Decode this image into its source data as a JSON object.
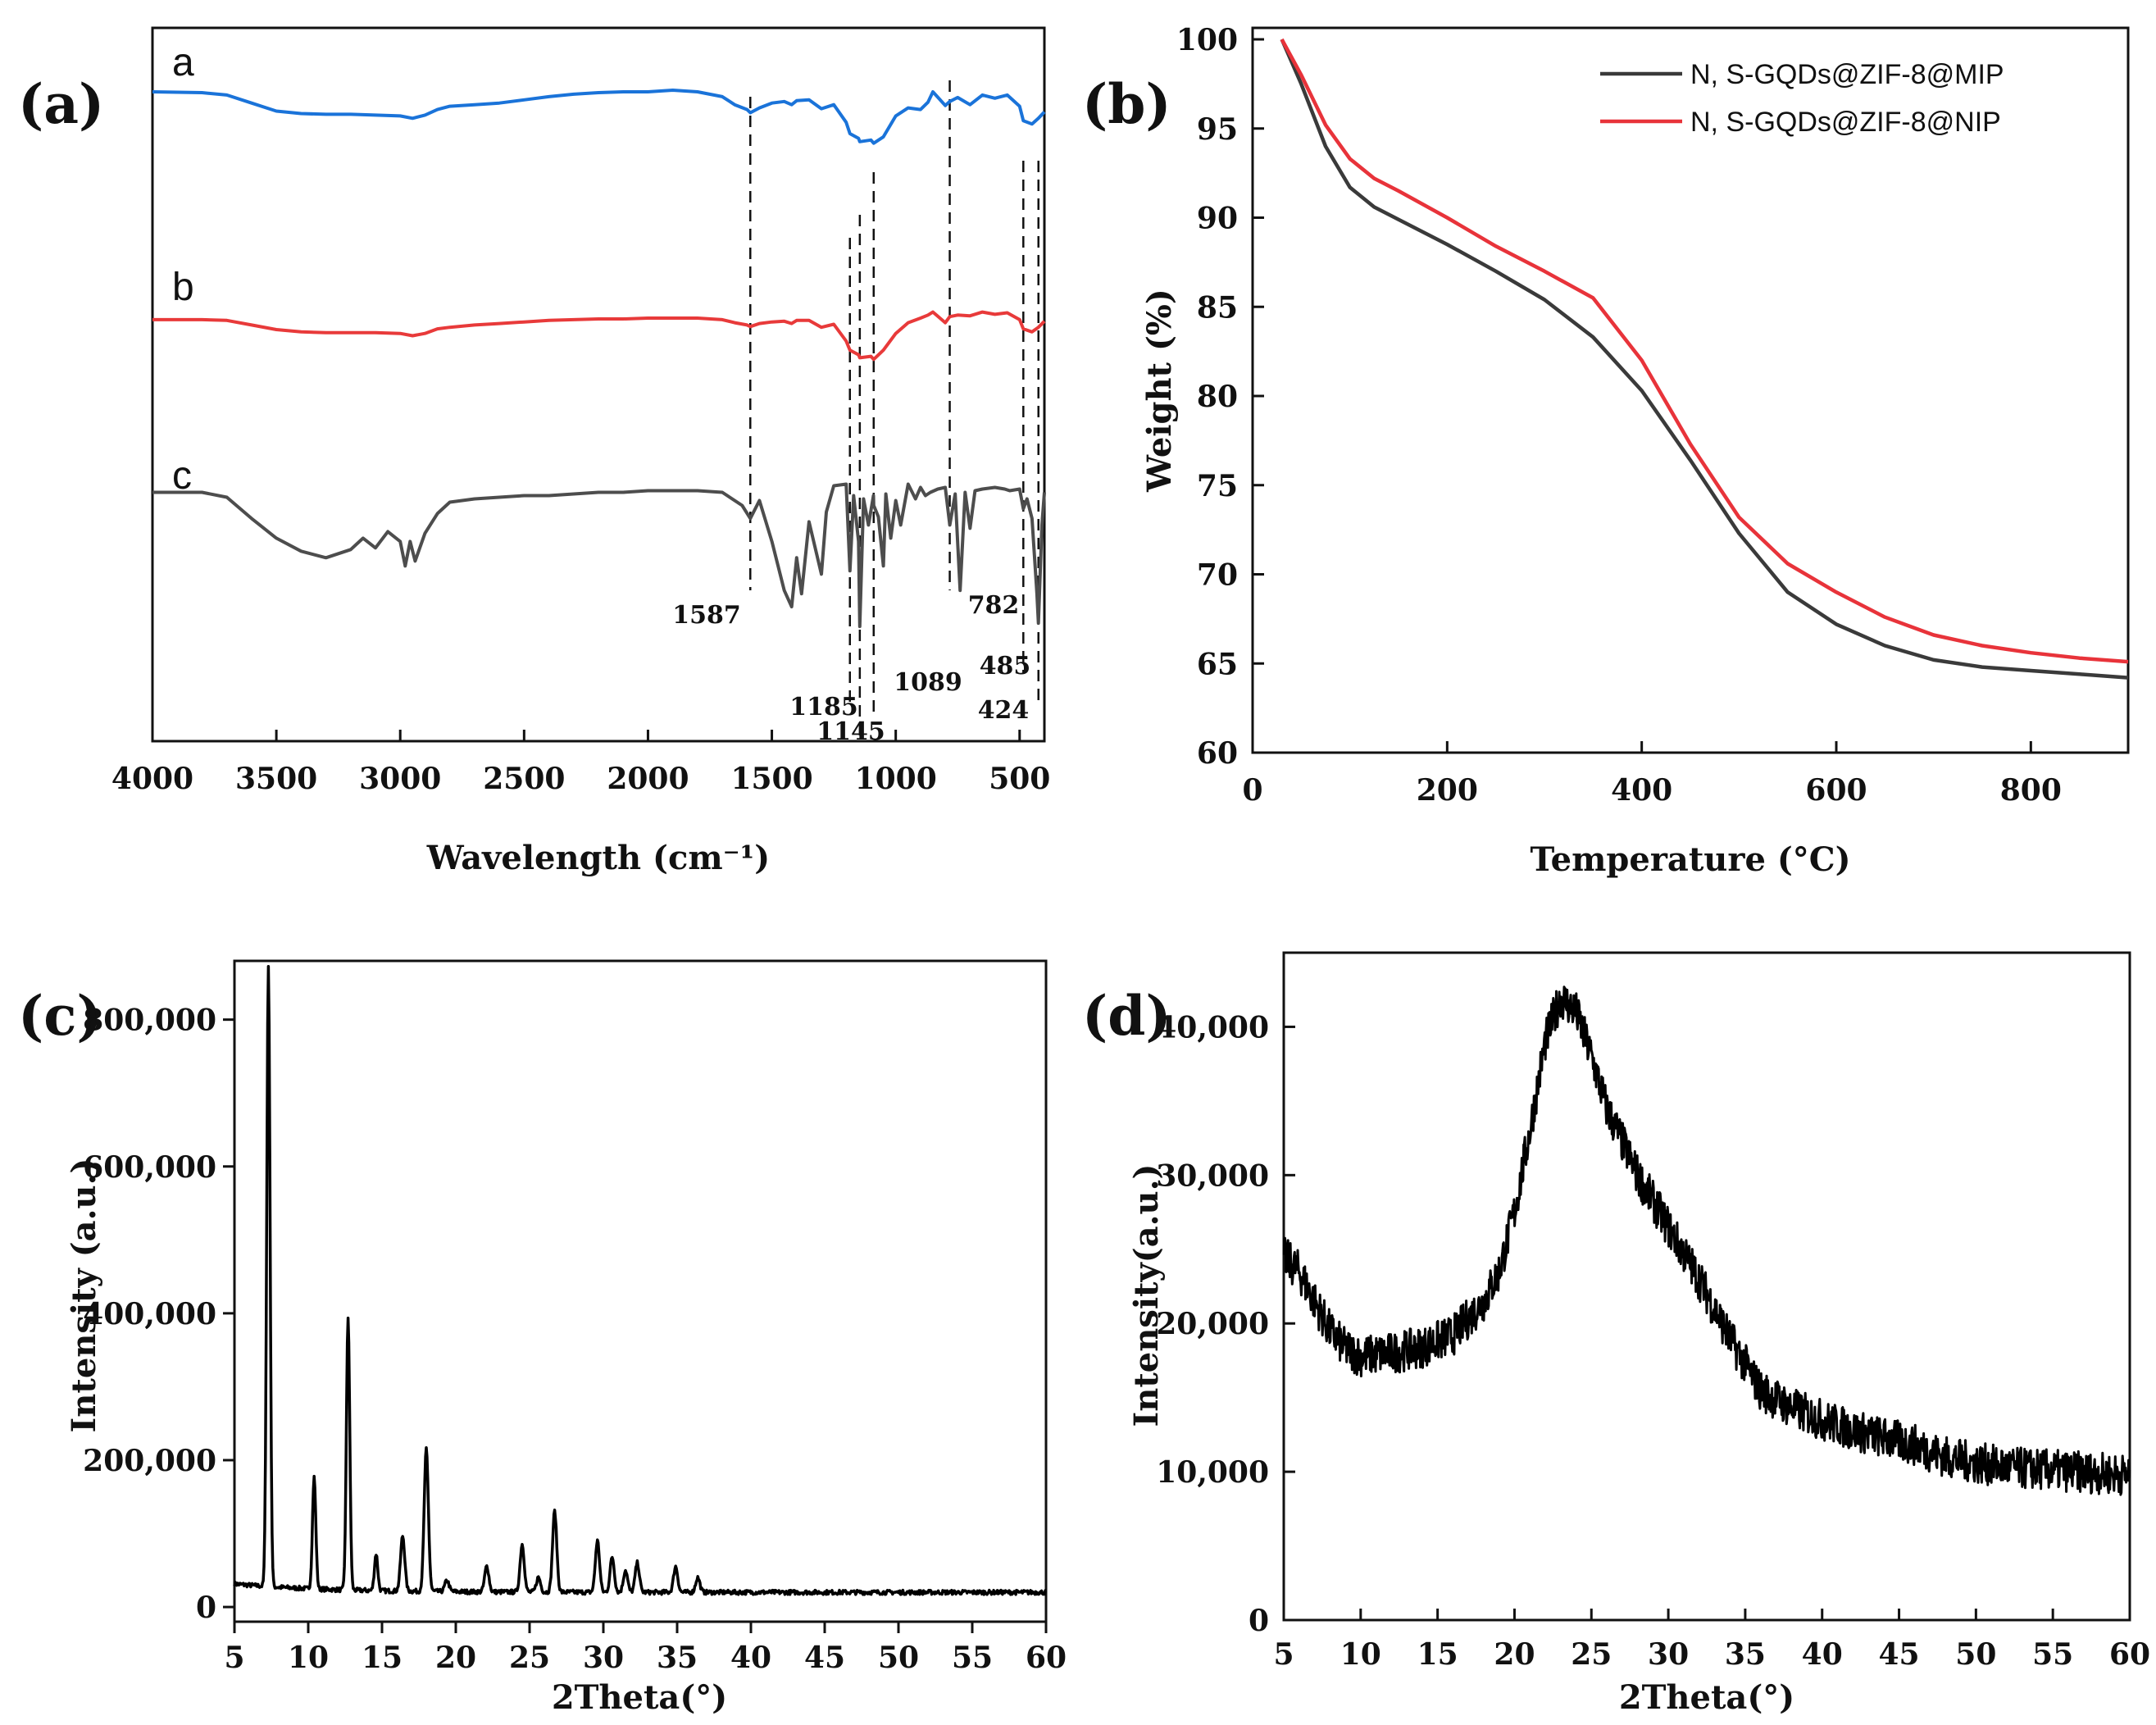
{
  "chart_data": [
    {
      "panel": "(a)",
      "type": "line",
      "xlabel": "Wavelength (cm⁻¹)",
      "ylabel": "",
      "xlim": [
        4000,
        400
      ],
      "xticks": [
        "4000",
        "3500",
        "3000",
        "2500",
        "2000",
        "1500",
        "1000",
        "500"
      ],
      "curve_labels": [
        "a",
        "b",
        "c"
      ],
      "series": [
        {
          "label": "a",
          "color": "#1a73d9",
          "x": [
            4000,
            3800,
            3700,
            3600,
            3500,
            3400,
            3300,
            3200,
            3100,
            3000,
            2950,
            2900,
            2850,
            2800,
            2700,
            2600,
            2500,
            2400,
            2300,
            2200,
            2100,
            2000,
            1900,
            1800,
            1700,
            1650,
            1600,
            1587,
            1550,
            1500,
            1450,
            1420,
            1400,
            1350,
            1300,
            1250,
            1200,
            1185,
            1150,
            1145,
            1100,
            1089,
            1050,
            1000,
            950,
            900,
            870,
            850,
            800,
            782,
            750,
            700,
            650,
            600,
            550,
            500,
            485,
            450,
            424,
            400
          ],
          "y": [
            1.0,
            0.99,
            0.96,
            0.86,
            0.76,
            0.73,
            0.72,
            0.72,
            0.71,
            0.7,
            0.67,
            0.71,
            0.78,
            0.82,
            0.84,
            0.86,
            0.9,
            0.94,
            0.97,
            0.99,
            1.0,
            1.0,
            1.02,
            1.0,
            0.94,
            0.84,
            0.78,
            0.74,
            0.8,
            0.86,
            0.88,
            0.84,
            0.89,
            0.9,
            0.79,
            0.84,
            0.62,
            0.48,
            0.42,
            0.38,
            0.4,
            0.36,
            0.44,
            0.7,
            0.8,
            0.78,
            0.87,
            1.0,
            0.83,
            0.88,
            0.93,
            0.84,
            0.96,
            0.92,
            0.96,
            0.82,
            0.64,
            0.6,
            0.67,
            0.75
          ]
        },
        {
          "label": "b",
          "color": "#e83a3a",
          "x": [
            4000,
            3800,
            3700,
            3600,
            3500,
            3400,
            3300,
            3200,
            3100,
            3000,
            2950,
            2900,
            2850,
            2800,
            2700,
            2600,
            2500,
            2400,
            2300,
            2200,
            2100,
            2000,
            1900,
            1800,
            1700,
            1650,
            1600,
            1587,
            1550,
            1500,
            1450,
            1420,
            1400,
            1350,
            1300,
            1250,
            1200,
            1185,
            1150,
            1145,
            1100,
            1089,
            1050,
            1000,
            950,
            900,
            870,
            850,
            800,
            782,
            750,
            700,
            650,
            600,
            550,
            500,
            485,
            450,
            424,
            400
          ],
          "y": [
            1.0,
            1.0,
            0.99,
            0.93,
            0.87,
            0.84,
            0.83,
            0.83,
            0.83,
            0.82,
            0.79,
            0.82,
            0.88,
            0.9,
            0.93,
            0.95,
            0.97,
            0.99,
            1.0,
            1.01,
            1.01,
            1.02,
            1.02,
            1.02,
            1.0,
            0.96,
            0.93,
            0.91,
            0.95,
            0.97,
            0.98,
            0.95,
            0.99,
            0.99,
            0.9,
            0.94,
            0.72,
            0.6,
            0.54,
            0.5,
            0.52,
            0.48,
            0.6,
            0.82,
            0.96,
            1.02,
            1.06,
            1.1,
            0.96,
            1.04,
            1.06,
            1.05,
            1.1,
            1.07,
            1.09,
            1.0,
            0.88,
            0.84,
            0.9,
            0.98
          ]
        },
        {
          "label": "c",
          "color": "#4d4d4d",
          "x": [
            4000,
            3800,
            3700,
            3600,
            3500,
            3400,
            3300,
            3200,
            3150,
            3100,
            3050,
            3000,
            2980,
            2960,
            2940,
            2900,
            2850,
            2800,
            2700,
            2600,
            2500,
            2400,
            2300,
            2200,
            2100,
            2000,
            1900,
            1800,
            1700,
            1620,
            1587,
            1550,
            1500,
            1450,
            1420,
            1400,
            1380,
            1350,
            1300,
            1280,
            1250,
            1200,
            1185,
            1170,
            1150,
            1145,
            1130,
            1110,
            1090,
            1089,
            1070,
            1050,
            1040,
            1020,
            1000,
            980,
            950,
            920,
            900,
            880,
            860,
            830,
            800,
            782,
            760,
            740,
            720,
            700,
            680,
            650,
            600,
            560,
            540,
            500,
            485,
            470,
            450,
            430,
            424,
            410,
            400
          ],
          "y": [
            1.0,
            1.0,
            0.97,
            0.84,
            0.72,
            0.64,
            0.6,
            0.65,
            0.72,
            0.66,
            0.76,
            0.7,
            0.55,
            0.7,
            0.58,
            0.75,
            0.87,
            0.94,
            0.96,
            0.97,
            0.98,
            0.98,
            0.99,
            1.0,
            1.0,
            1.01,
            1.01,
            1.01,
            1.0,
            0.92,
            0.84,
            0.95,
            0.7,
            0.4,
            0.3,
            0.6,
            0.38,
            0.82,
            0.5,
            0.88,
            1.04,
            1.05,
            0.52,
            0.98,
            0.7,
            0.18,
            0.96,
            0.8,
            0.98,
            0.92,
            0.85,
            0.55,
            0.99,
            0.72,
            0.95,
            0.8,
            1.05,
            0.96,
            1.03,
            0.98,
            1.0,
            1.02,
            1.03,
            0.8,
            0.99,
            0.4,
            1.0,
            0.78,
            1.01,
            1.02,
            1.03,
            1.02,
            1.01,
            1.02,
            0.9,
            0.96,
            0.84,
            0.38,
            0.2,
            0.8,
            1.0
          ]
        }
      ],
      "annotations": [
        "1587",
        "1185",
        "1145",
        "1089",
        "782",
        "485",
        "424"
      ]
    },
    {
      "panel": "(b)",
      "type": "line",
      "xlabel": "Temperature (°C)",
      "ylabel": "Weight (%)",
      "xlim": [
        0,
        900
      ],
      "ylim": [
        60,
        100
      ],
      "xticks": [
        "0",
        "200",
        "400",
        "600",
        "800"
      ],
      "yticks": [
        "60",
        "65",
        "70",
        "75",
        "80",
        "85",
        "90",
        "95",
        "100"
      ],
      "legend_position": "top-right",
      "series": [
        {
          "name": "N, S-GQDs@ZIF-8@MIP",
          "color": "#3a3a3a",
          "x": [
            30,
            50,
            75,
            100,
            125,
            150,
            200,
            250,
            300,
            350,
            400,
            450,
            500,
            550,
            600,
            650,
            700,
            750,
            800,
            850,
            900
          ],
          "y": [
            100,
            97.5,
            94,
            91.7,
            90.6,
            89.9,
            88.5,
            87.0,
            85.4,
            83.3,
            80.3,
            76.4,
            72.3,
            69.0,
            67.2,
            66.0,
            65.2,
            64.8,
            64.6,
            64.4,
            64.2
          ]
        },
        {
          "name": "N, S-GQDs@ZIF-8@NIP",
          "color": "#e8333a",
          "x": [
            30,
            50,
            75,
            100,
            125,
            150,
            200,
            250,
            300,
            350,
            400,
            450,
            500,
            550,
            600,
            650,
            700,
            750,
            800,
            850,
            900
          ],
          "y": [
            100,
            98.0,
            95.2,
            93.3,
            92.2,
            91.5,
            90.0,
            88.4,
            87.0,
            85.5,
            82.0,
            77.3,
            73.2,
            70.6,
            69.0,
            67.6,
            66.6,
            66.0,
            65.6,
            65.3,
            65.1
          ]
        }
      ]
    },
    {
      "panel": "(c)",
      "type": "line",
      "xlabel": "2Theta(°)",
      "ylabel": "Intensity  (a.u.)",
      "xlim": [
        5,
        60
      ],
      "ylim": [
        -20000,
        880000
      ],
      "xticks": [
        "5",
        "10",
        "15",
        "20",
        "25",
        "30",
        "35",
        "40",
        "45",
        "50",
        "55",
        "60"
      ],
      "yticks": [
        "0",
        "200,000",
        "400,000",
        "600,000",
        "800,000"
      ],
      "peaks_x": [
        7.3,
        10.4,
        12.7,
        14.6,
        16.4,
        18.0,
        19.4,
        22.1,
        24.5,
        25.6,
        26.7,
        29.6,
        30.6,
        31.5,
        32.3,
        34.9,
        36.4,
        41.5
      ],
      "peaks_y": [
        865000,
        172000,
        392000,
        70000,
        95000,
        213000,
        35000,
        55000,
        85000,
        40000,
        130000,
        90000,
        68000,
        50000,
        60000,
        55000,
        40000,
        20000
      ],
      "baseline": 20000
    },
    {
      "panel": "(d)",
      "type": "line",
      "xlabel": "2Theta(°)",
      "ylabel": "Intensity(a.u.)",
      "xlim": [
        5,
        60
      ],
      "ylim": [
        0,
        45000
      ],
      "xticks": [
        "5",
        "10",
        "15",
        "20",
        "25",
        "30",
        "35",
        "40",
        "45",
        "50",
        "55",
        "60"
      ],
      "yticks": [
        "0",
        "10,000",
        "20,000",
        "30,000",
        "40,000"
      ],
      "x": [
        5,
        6,
        7,
        8,
        9,
        10,
        12,
        14,
        16,
        18,
        19,
        20,
        21,
        22,
        23,
        24,
        25,
        26,
        28,
        30,
        32,
        34,
        36,
        38,
        40,
        42,
        44,
        46,
        48,
        50,
        52,
        55,
        58,
        60
      ],
      "y": [
        24500,
        23500,
        21500,
        19500,
        18300,
        17800,
        18000,
        18400,
        19200,
        21500,
        23500,
        27500,
        33000,
        39000,
        42000,
        41000,
        38000,
        34500,
        30000,
        26500,
        23000,
        19000,
        15500,
        14300,
        13500,
        12800,
        12300,
        11800,
        11000,
        10600,
        10300,
        10100,
        9900,
        9800
      ]
    }
  ]
}
